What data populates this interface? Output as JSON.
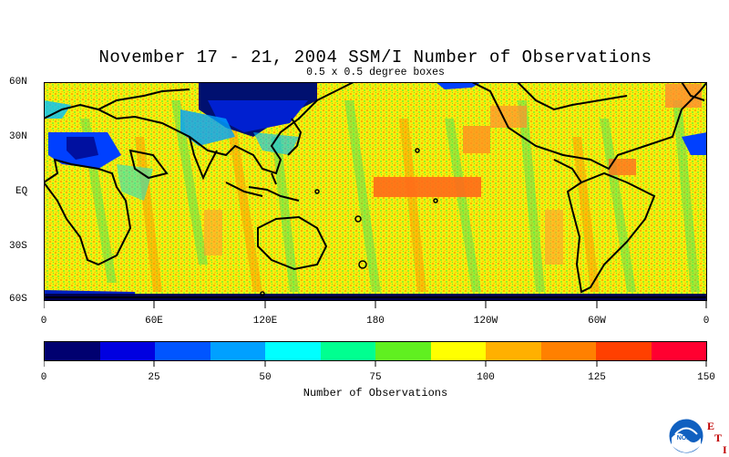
{
  "title": "November 17 - 21, 2004 SSM/I Number of Observations",
  "subtitle": "0.5 x 0.5 degree boxes",
  "map": {
    "projection": "equirectangular",
    "lat_range": [
      -60,
      60
    ],
    "lon_range": [
      0,
      360
    ],
    "y_labels": [
      "60N",
      "30N",
      "EQ",
      "30S",
      "60S"
    ],
    "x_labels": [
      "0",
      "60E",
      "120E",
      "180",
      "120W",
      "60W",
      "0"
    ]
  },
  "colorbar": {
    "ticks": [
      "0",
      "25",
      "50",
      "75",
      "100",
      "125",
      "150"
    ],
    "label": "Number of Observations",
    "colors": [
      "#000070",
      "#0000e0",
      "#0055ff",
      "#00a0ff",
      "#00ffff",
      "#00ff90",
      "#60f020",
      "#ffff00",
      "#ffb000",
      "#ff8000",
      "#ff4000",
      "#ff0030"
    ],
    "min": 0,
    "max": 150
  },
  "logo": {
    "icon": "noaa-logo-icon",
    "text": "NOAA",
    "eti_letters": [
      "E",
      "T",
      "I"
    ]
  }
}
